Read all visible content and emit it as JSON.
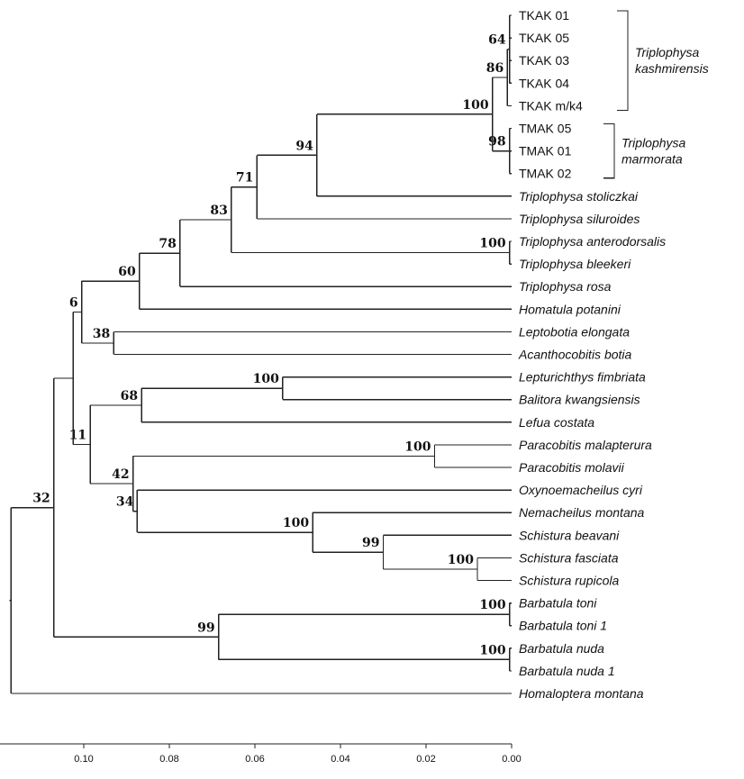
{
  "axis": {
    "max_distance": 0.12,
    "ticks": [
      "0.10",
      "0.08",
      "0.06",
      "0.04",
      "0.02",
      "0.00"
    ],
    "tick_values": [
      0.1,
      0.08,
      0.06,
      0.04,
      0.02,
      0.0
    ]
  },
  "taxa": [
    {
      "id": "t1",
      "name": "TKAK 01",
      "italic": false
    },
    {
      "id": "t2",
      "name": "TKAK 05",
      "italic": false
    },
    {
      "id": "t3",
      "name": "TKAK 03",
      "italic": false
    },
    {
      "id": "t4",
      "name": "TKAK 04",
      "italic": false
    },
    {
      "id": "t5",
      "name": "TKAK m/k4",
      "italic": false
    },
    {
      "id": "t6",
      "name": "TMAK 05",
      "italic": false
    },
    {
      "id": "t7",
      "name": "TMAK 01",
      "italic": false
    },
    {
      "id": "t8",
      "name": "TMAK 02",
      "italic": false
    },
    {
      "id": "t9",
      "name": "Triplophysa stoliczkai",
      "italic": true
    },
    {
      "id": "t10",
      "name": "Triplophysa siluroides",
      "italic": true
    },
    {
      "id": "t11",
      "name": "Triplophysa anterodorsalis",
      "italic": true
    },
    {
      "id": "t12",
      "name": "Triplophysa bleekeri",
      "italic": true
    },
    {
      "id": "t13",
      "name": "Triplophysa rosa",
      "italic": true
    },
    {
      "id": "t14",
      "name": "Homatula potanini",
      "italic": true
    },
    {
      "id": "t15",
      "name": "Leptobotia elongata",
      "italic": true
    },
    {
      "id": "t16",
      "name": "Acanthocobitis botia",
      "italic": true
    },
    {
      "id": "t17",
      "name": "Lepturichthys fimbriata",
      "italic": true
    },
    {
      "id": "t18",
      "name": "Balitora kwangsiensis",
      "italic": true
    },
    {
      "id": "t19",
      "name": "Lefua costata",
      "italic": true
    },
    {
      "id": "t20",
      "name": "Paracobitis malapterura",
      "italic": true
    },
    {
      "id": "t21",
      "name": "Paracobitis molavii",
      "italic": true
    },
    {
      "id": "t22",
      "name": "Oxynoemacheilus cyri",
      "italic": true
    },
    {
      "id": "t23",
      "name": "Nemacheilus montana",
      "italic": true
    },
    {
      "id": "t24",
      "name": "Schistura beavani",
      "italic": true
    },
    {
      "id": "t25",
      "name": "Schistura fasciata",
      "italic": true
    },
    {
      "id": "t26",
      "name": "Schistura rupicola",
      "italic": true
    },
    {
      "id": "t27",
      "name": "Barbatula toni",
      "italic": true
    },
    {
      "id": "t28",
      "name": "Barbatula toni 1",
      "italic": true
    },
    {
      "id": "t29",
      "name": "Barbatula nuda",
      "italic": true
    },
    {
      "id": "t30",
      "name": "Barbatula nuda 1",
      "italic": true
    },
    {
      "id": "t31",
      "name": "Homaloptera montana",
      "italic": true
    }
  ],
  "nodes": [
    {
      "id": "n_tkak_inner",
      "dist": 0.0005,
      "children": [
        "t1",
        "t2",
        "t3",
        "t4"
      ],
      "support": "64"
    },
    {
      "id": "n_tkak",
      "dist": 0.001,
      "children": [
        "n_tkak_inner",
        "t5"
      ],
      "support": "86"
    },
    {
      "id": "n_tmak",
      "dist": 0.0005,
      "children": [
        "t6",
        "t7",
        "t8"
      ],
      "support": "98"
    },
    {
      "id": "n_kash_marm",
      "dist": 0.0045,
      "children": [
        "n_tkak",
        "n_tmak"
      ],
      "support": "100"
    },
    {
      "id": "n_stol",
      "dist": 0.0455,
      "children": [
        "n_kash_marm",
        "t9"
      ],
      "support": "94"
    },
    {
      "id": "n_silu",
      "dist": 0.0595,
      "children": [
        "n_stol",
        "t10"
      ],
      "support": "71"
    },
    {
      "id": "n_antero",
      "dist": 0.0005,
      "children": [
        "t11",
        "t12"
      ],
      "support": "100"
    },
    {
      "id": "n_trip_a",
      "dist": 0.0655,
      "children": [
        "n_silu",
        "n_antero"
      ],
      "support": "83"
    },
    {
      "id": "n_trip_b",
      "dist": 0.0775,
      "children": [
        "n_trip_a",
        "t13"
      ],
      "support": "78"
    },
    {
      "id": "n_homatula",
      "dist": 0.087,
      "children": [
        "n_trip_b",
        "t14"
      ],
      "support": "60"
    },
    {
      "id": "n_lepto",
      "dist": 0.093,
      "children": [
        "t15",
        "t16"
      ],
      "support": "38"
    },
    {
      "id": "n_upper",
      "dist": 0.1005,
      "children": [
        "n_homatula",
        "n_lepto"
      ],
      "support": "6"
    },
    {
      "id": "n_balitora",
      "dist": 0.0535,
      "children": [
        "t17",
        "t18"
      ],
      "support": "100"
    },
    {
      "id": "n_lefua",
      "dist": 0.0865,
      "children": [
        "n_balitora",
        "t19"
      ],
      "support": "68"
    },
    {
      "id": "n_paraco",
      "dist": 0.018,
      "children": [
        "t20",
        "t21"
      ],
      "support": "100"
    },
    {
      "id": "n_schist_b",
      "dist": 0.008,
      "children": [
        "t25",
        "t26"
      ],
      "support": "100"
    },
    {
      "id": "n_schist_a",
      "dist": 0.03,
      "children": [
        "t24",
        "n_schist_b"
      ],
      "support": "99"
    },
    {
      "id": "n_nemach",
      "dist": 0.0465,
      "children": [
        "t23",
        "n_schist_a"
      ],
      "support": "100"
    },
    {
      "id": "n_oxy",
      "dist": 0.0875,
      "children": [
        "t22",
        "n_nemach"
      ],
      "support": "34"
    },
    {
      "id": "n_nemach_grp",
      "dist": 0.0885,
      "children": [
        "n_paraco",
        "n_oxy"
      ],
      "support": "42"
    },
    {
      "id": "n_lower",
      "dist": 0.0985,
      "children": [
        "n_lefua",
        "n_nemach_grp"
      ],
      "support": "11"
    },
    {
      "id": "n_main",
      "dist": 0.1025,
      "children": [
        "n_upper",
        "n_lower"
      ],
      "support": ""
    },
    {
      "id": "n_toni",
      "dist": 0.0005,
      "children": [
        "t27",
        "t28"
      ],
      "support": "100"
    },
    {
      "id": "n_nuda",
      "dist": 0.0005,
      "children": [
        "t29",
        "t30"
      ],
      "support": "100"
    },
    {
      "id": "n_barb",
      "dist": 0.0685,
      "children": [
        "n_toni",
        "n_nuda"
      ],
      "support": "99"
    },
    {
      "id": "n_ingroup",
      "dist": 0.107,
      "children": [
        "n_main",
        "n_barb"
      ],
      "support": "32"
    },
    {
      "id": "n_root",
      "dist": 0.117,
      "children": [
        "n_ingroup",
        "t31"
      ],
      "support": ""
    }
  ],
  "groups": [
    {
      "id": "g_kash",
      "from": "t1",
      "to": "t5",
      "lines": [
        "Triplophysa",
        "kashmirensis"
      ]
    },
    {
      "id": "g_marm",
      "from": "t6",
      "to": "t8",
      "lines": [
        "Triplophysa",
        "marmorata"
      ]
    }
  ]
}
